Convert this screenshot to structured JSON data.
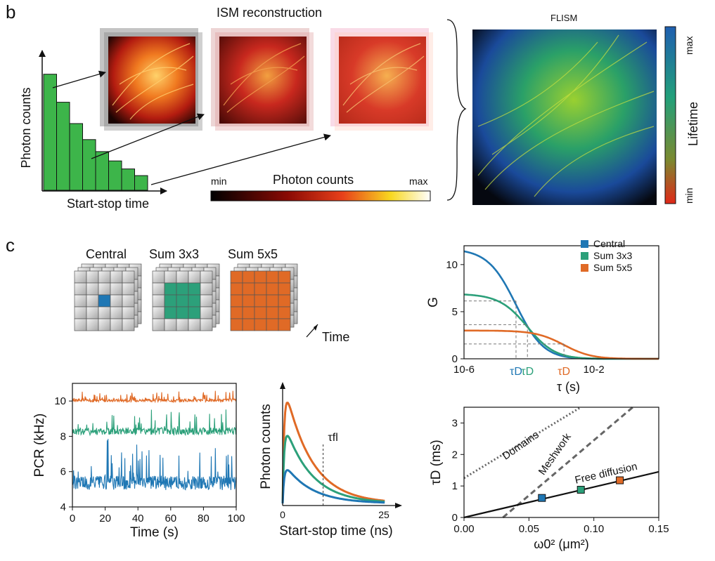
{
  "panel_b": {
    "letter": "b",
    "ism_title": "ISM reconstruction",
    "flism_title": "FLISM",
    "hist_ylabel": "Photon counts",
    "hist_xlabel": "Start-stop time",
    "hist_bars": [
      0.87,
      0.66,
      0.5,
      0.38,
      0.29,
      0.22,
      0.16,
      0.11
    ],
    "photon_bar": {
      "min": "min",
      "label": "Photon counts",
      "max": "max"
    },
    "lifetime_bar": {
      "max": "max",
      "label": "Lifetime",
      "min": "min"
    },
    "colors": {
      "hist_green": "#3db54a",
      "hot_red": "#c8281e"
    }
  },
  "panel_c": {
    "letter": "c",
    "grids": {
      "central": "Central",
      "sum3": "Sum 3x3",
      "sum5": "Sum 5x5",
      "time": "Time"
    },
    "colors": {
      "central": "#1f77b4",
      "sum3": "#2ca07a",
      "sum5": "#e06a26"
    }
  },
  "chart_data": [
    {
      "type": "line",
      "xlabel": "Time (s)",
      "ylabel": "PCR (kHz)",
      "xlim": [
        0,
        100
      ],
      "ylim": [
        4,
        11
      ],
      "xticks": [
        "0",
        "20",
        "40",
        "60",
        "80",
        "100"
      ],
      "yticks": [
        "4",
        "6",
        "8",
        "10"
      ],
      "series": [
        {
          "color": "#e06a26",
          "baseline": 10.0,
          "amplitude": 0.5
        },
        {
          "color": "#2ca07a",
          "baseline": 8.2,
          "amplitude": 1.2
        },
        {
          "color": "#1f77b4",
          "baseline": 5.2,
          "amplitude": 2.3
        }
      ]
    },
    {
      "type": "line",
      "xlabel": "Start-stop time (ns)",
      "ylabel": "Photon counts",
      "xticks": [
        "0",
        "25"
      ],
      "annotation": "τfl",
      "series": [
        {
          "color": "#e06a26",
          "peak": 1.0
        },
        {
          "color": "#2ca07a",
          "peak": 0.67
        },
        {
          "color": "#1f77b4",
          "peak": 0.33
        }
      ]
    },
    {
      "type": "line",
      "xlabel": "τ (s)",
      "ylabel": "G",
      "xscale": "log",
      "xlim": [
        1e-06,
        1
      ],
      "ylim": [
        0,
        12
      ],
      "xticks": [
        "10-6",
        "10-2"
      ],
      "yticks": [
        "0",
        "5",
        "10"
      ],
      "legend": "top-right",
      "series": [
        {
          "name": "Central",
          "color": "#1f77b4",
          "G0": 11.7,
          "tauD": 4e-05
        },
        {
          "name": "Sum 3x3",
          "color": "#2ca07a",
          "G0": 6.9,
          "tauD": 9e-05
        },
        {
          "name": "Sum 5x5",
          "color": "#e06a26",
          "G0": 3.0,
          "tauD": 0.0012
        }
      ],
      "tau_labels": [
        "τD",
        "τD",
        "τD"
      ]
    },
    {
      "type": "scatter",
      "xlabel": "ω0² (μm²)",
      "ylabel": "τD (ms)",
      "xlim": [
        0,
        0.15
      ],
      "ylim": [
        0,
        3.5
      ],
      "xticks": [
        "0.00",
        "0.05",
        "0.10",
        "0.15"
      ],
      "yticks": [
        "0",
        "1",
        "2",
        "3"
      ],
      "lines": [
        {
          "label": "Domains",
          "style": "dotted",
          "x": [
            0,
            0.09
          ],
          "y": [
            1.25,
            3.5
          ]
        },
        {
          "label": "Meshwork",
          "style": "dashed",
          "x": [
            0.03,
            0.13
          ],
          "y": [
            0,
            3.5
          ]
        },
        {
          "label": "Free diffusion",
          "style": "solid",
          "x": [
            0,
            0.15
          ],
          "y": [
            0,
            1.45
          ]
        }
      ],
      "points": [
        {
          "x": 0.06,
          "y": 0.62,
          "color": "#1f77b4"
        },
        {
          "x": 0.09,
          "y": 0.88,
          "color": "#2ca07a"
        },
        {
          "x": 0.12,
          "y": 1.18,
          "color": "#e06a26"
        }
      ]
    }
  ]
}
